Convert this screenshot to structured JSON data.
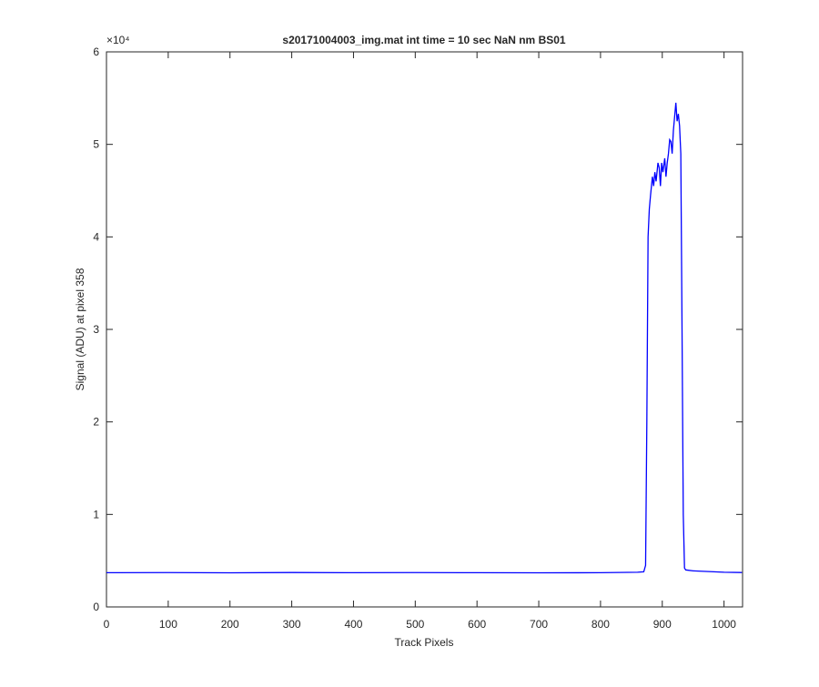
{
  "chart_data": {
    "type": "line",
    "title": "s20171004003_img.mat int time = 10 sec  NaN nm BS01",
    "x_label": "Track Pixels",
    "y_label": "Signal (ADU) at pixel 358",
    "y_exponent_label": "×10⁴",
    "x": [
      0,
      100,
      200,
      300,
      400,
      500,
      600,
      700,
      800,
      860,
      870,
      873,
      875,
      877,
      879,
      881,
      884,
      886,
      888,
      890,
      893,
      895,
      897,
      899,
      901,
      904,
      906,
      908,
      910,
      912,
      914,
      916,
      918,
      920,
      922,
      924,
      926,
      928,
      930,
      932,
      934,
      936,
      938,
      950,
      1000,
      1029
    ],
    "series": [
      {
        "name": "signal",
        "color": "#0000ff",
        "values": [
          3700,
          3710,
          3690,
          3720,
          3700,
          3710,
          3700,
          3690,
          3700,
          3750,
          3800,
          4500,
          20000,
          40000,
          43000,
          44500,
          46500,
          45500,
          47000,
          46000,
          48000,
          47500,
          45500,
          48000,
          47000,
          48500,
          46500,
          48000,
          49000,
          50500,
          50300,
          49000,
          51500,
          53000,
          54500,
          52500,
          53300,
          52000,
          49000,
          30000,
          10000,
          4200,
          4000,
          3900,
          3750,
          3720
        ]
      }
    ],
    "xlim": [
      0,
      1030
    ],
    "ylim": [
      0,
      60000
    ],
    "xticks": [
      0,
      100,
      200,
      300,
      400,
      500,
      600,
      700,
      800,
      900,
      1000
    ],
    "yticks": [
      0,
      {
        "value": 10000,
        "label": "1"
      },
      {
        "value": 20000,
        "label": "2"
      },
      {
        "value": 30000,
        "label": "3"
      },
      {
        "value": 40000,
        "label": "4"
      },
      {
        "value": 50000,
        "label": "5"
      },
      {
        "value": 60000,
        "label": "6"
      }
    ]
  }
}
